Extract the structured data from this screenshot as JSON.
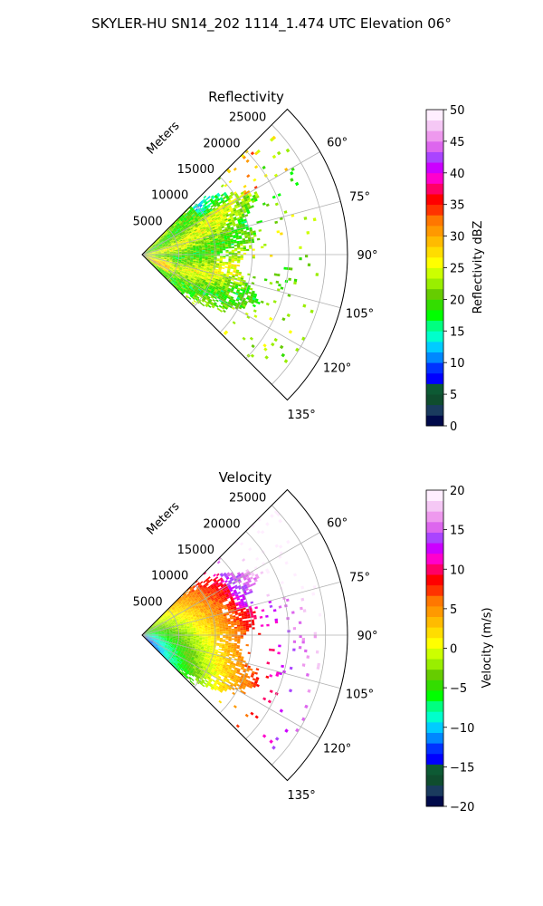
{
  "figure": {
    "title": "SKYLER-HU  SN14_202  1114_1.474 UTC Elevation 06°"
  },
  "chart_data": [
    {
      "type": "heatmap",
      "projection": "polar-sector",
      "title": "Reflectivity",
      "range_label": "Meters",
      "range_ticks": [
        5000,
        10000,
        15000,
        20000,
        25000
      ],
      "range_tick_labels": [
        "5000",
        "10000",
        "15000",
        "20000",
        "25000"
      ],
      "range_max": 28000,
      "angle_range_deg": [
        45,
        135
      ],
      "angle_ticks": [
        60,
        75,
        90,
        105,
        120,
        135
      ],
      "angle_tick_labels": [
        "60°",
        "75°",
        "90°",
        "105°",
        "120°",
        "135°"
      ],
      "grid": true,
      "colorbar": {
        "label": "Reflectivity dBZ",
        "min": 0,
        "max": 50,
        "ticks": [
          0,
          5,
          10,
          15,
          20,
          25,
          30,
          35,
          40,
          45,
          50
        ],
        "tick_labels": [
          "0",
          "5",
          "10",
          "15",
          "20",
          "25",
          "30",
          "35",
          "40",
          "45",
          "50"
        ],
        "colors": [
          "#000a4a",
          "#1a3b5e",
          "#0f4d2e",
          "#0d5a34",
          "#0000ff",
          "#0033ff",
          "#0088ff",
          "#00ccff",
          "#00ffcc",
          "#00ff80",
          "#00ff00",
          "#33dd00",
          "#66cc00",
          "#99ee00",
          "#ccff00",
          "#ffff00",
          "#ffdd00",
          "#ffbb00",
          "#ff9900",
          "#ff7700",
          "#ff3300",
          "#ff0000",
          "#ff0066",
          "#ff00cc",
          "#cc00ff",
          "#aa44ff",
          "#dd66ee",
          "#ee99ee",
          "#f5c8f5",
          "#ffeeff"
        ]
      }
    },
    {
      "type": "heatmap",
      "projection": "polar-sector",
      "title": "Velocity",
      "range_label": "Meters",
      "range_ticks": [
        5000,
        10000,
        15000,
        20000,
        25000
      ],
      "range_tick_labels": [
        "5000",
        "10000",
        "15000",
        "20000",
        "25000"
      ],
      "range_max": 28000,
      "angle_range_deg": [
        45,
        135
      ],
      "angle_ticks": [
        60,
        75,
        90,
        105,
        120,
        135
      ],
      "angle_tick_labels": [
        "60°",
        "75°",
        "90°",
        "105°",
        "120°",
        "135°"
      ],
      "grid": true,
      "colorbar": {
        "label": "Velocity (m/s)",
        "min": -20,
        "max": 20,
        "ticks": [
          -20,
          -15,
          -10,
          -5,
          0,
          5,
          10,
          15,
          20
        ],
        "tick_labels": [
          "−20",
          "−15",
          "−10",
          "−5",
          "0",
          "5",
          "10",
          "15",
          "20"
        ],
        "colors": [
          "#000a4a",
          "#1a3b5e",
          "#0f4d2e",
          "#0d5a34",
          "#0000ff",
          "#0033ff",
          "#0088ff",
          "#00ccff",
          "#00ffcc",
          "#00ff80",
          "#00ff00",
          "#33dd00",
          "#66cc00",
          "#99ee00",
          "#ccff00",
          "#ffff00",
          "#ffdd00",
          "#ffbb00",
          "#ff9900",
          "#ff7700",
          "#ff3300",
          "#ff0000",
          "#ff0066",
          "#ff00cc",
          "#cc00ff",
          "#aa44ff",
          "#dd66ee",
          "#ee99ee",
          "#f5c8f5",
          "#ffeeff"
        ]
      }
    }
  ]
}
